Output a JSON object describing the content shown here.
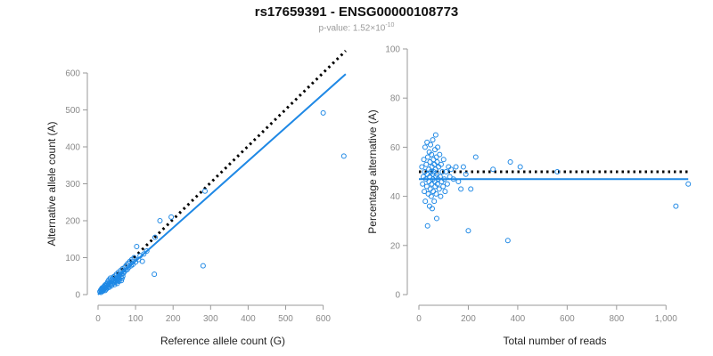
{
  "title": "rs17659391 - ENSG00000108773",
  "subtitle": {
    "prefix": "p-value: 1.52×10",
    "exponent": "-10"
  },
  "colors": {
    "series": "#1e88e5",
    "reference_line": "#000000",
    "axis": "#9a9a9a",
    "tick_text": "#8a8a8a"
  },
  "chart_data": [
    {
      "type": "scatter",
      "xlabel": "Reference allele count (G)",
      "ylabel": "Alternative allele count (A)",
      "xlim": [
        0,
        665
      ],
      "ylim": [
        0,
        600
      ],
      "x_ticks": [
        0,
        100,
        200,
        300,
        400,
        500,
        600
      ],
      "y_ticks": [
        0,
        100,
        200,
        300,
        400,
        500,
        600
      ],
      "x_tick_labels": [
        "0",
        "100",
        "200",
        "300",
        "400",
        "500",
        "600"
      ],
      "y_tick_labels": [
        "0",
        "100",
        "200",
        "300",
        "400",
        "500",
        "600"
      ],
      "grid": false,
      "reference_line": {
        "style": "dotted",
        "points": [
          [
            40,
            45
          ],
          [
            660,
            660
          ]
        ]
      },
      "fit_line": {
        "style": "solid",
        "points": [
          [
            0,
            0
          ],
          [
            660,
            597
          ]
        ]
      },
      "points": [
        [
          5,
          8
        ],
        [
          7,
          12
        ],
        [
          8,
          6
        ],
        [
          9,
          15
        ],
        [
          10,
          10
        ],
        [
          11,
          18
        ],
        [
          12,
          9
        ],
        [
          13,
          14
        ],
        [
          14,
          20
        ],
        [
          15,
          12
        ],
        [
          16,
          22
        ],
        [
          17,
          16
        ],
        [
          18,
          25
        ],
        [
          19,
          11
        ],
        [
          20,
          19
        ],
        [
          21,
          28
        ],
        [
          22,
          15
        ],
        [
          23,
          24
        ],
        [
          24,
          30
        ],
        [
          25,
          18
        ],
        [
          26,
          35
        ],
        [
          27,
          22
        ],
        [
          28,
          27
        ],
        [
          29,
          40
        ],
        [
          30,
          20
        ],
        [
          31,
          33
        ],
        [
          32,
          26
        ],
        [
          33,
          45
        ],
        [
          34,
          30
        ],
        [
          35,
          38
        ],
        [
          36,
          24
        ],
        [
          37,
          42
        ],
        [
          38,
          29
        ],
        [
          40,
          35
        ],
        [
          41,
          48
        ],
        [
          42,
          32
        ],
        [
          43,
          40
        ],
        [
          44,
          27
        ],
        [
          45,
          50
        ],
        [
          46,
          37
        ],
        [
          47,
          44
        ],
        [
          48,
          34
        ],
        [
          49,
          55
        ],
        [
          50,
          41
        ],
        [
          51,
          30
        ],
        [
          52,
          47
        ],
        [
          53,
          38
        ],
        [
          54,
          60
        ],
        [
          55,
          45
        ],
        [
          56,
          36
        ],
        [
          57,
          52
        ],
        [
          58,
          42
        ],
        [
          60,
          65
        ],
        [
          61,
          48
        ],
        [
          62,
          38
        ],
        [
          63,
          56
        ],
        [
          64,
          44
        ],
        [
          65,
          70
        ],
        [
          66,
          50
        ],
        [
          68,
          58
        ],
        [
          70,
          62
        ],
        [
          72,
          75
        ],
        [
          74,
          66
        ],
        [
          76,
          80
        ],
        [
          78,
          68
        ],
        [
          80,
          85
        ],
        [
          82,
          74
        ],
        [
          85,
          90
        ],
        [
          88,
          78
        ],
        [
          90,
          95
        ],
        [
          93,
          82
        ],
        [
          96,
          100
        ],
        [
          100,
          88
        ],
        [
          103,
          130
        ],
        [
          108,
          95
        ],
        [
          112,
          105
        ],
        [
          118,
          90
        ],
        [
          122,
          110
        ],
        [
          130,
          118
        ],
        [
          150,
          55
        ],
        [
          152,
          155
        ],
        [
          165,
          200
        ],
        [
          195,
          210
        ],
        [
          280,
          78
        ],
        [
          285,
          280
        ],
        [
          600,
          492
        ],
        [
          655,
          375
        ]
      ]
    },
    {
      "type": "scatter",
      "xlabel": "Total number of reads",
      "ylabel": "Percentage alternative (A)",
      "xlim": [
        0,
        1100
      ],
      "ylim": [
        0,
        100
      ],
      "x_ticks": [
        0,
        200,
        400,
        600,
        800,
        1000
      ],
      "y_ticks": [
        0,
        20,
        40,
        60,
        80,
        100
      ],
      "x_tick_labels": [
        "0",
        "200",
        "400",
        "600",
        "800",
        "1,000"
      ],
      "y_tick_labels": [
        "0",
        "20",
        "40",
        "60",
        "80",
        "100"
      ],
      "grid": false,
      "reference_line": {
        "style": "dotted",
        "points": [
          [
            0,
            50
          ],
          [
            1090,
            50
          ]
        ]
      },
      "fit_line": {
        "style": "solid",
        "points": [
          [
            0,
            47
          ],
          [
            1090,
            47
          ]
        ]
      },
      "points": [
        [
          12,
          52
        ],
        [
          15,
          45
        ],
        [
          18,
          48
        ],
        [
          20,
          55
        ],
        [
          22,
          42
        ],
        [
          24,
          50
        ],
        [
          25,
          60
        ],
        [
          26,
          38
        ],
        [
          28,
          47
        ],
        [
          30,
          53
        ],
        [
          32,
          44
        ],
        [
          33,
          62
        ],
        [
          34,
          49
        ],
        [
          35,
          28
        ],
        [
          36,
          56
        ],
        [
          38,
          41
        ],
        [
          40,
          51
        ],
        [
          41,
          46
        ],
        [
          42,
          58
        ],
        [
          43,
          36
        ],
        [
          44,
          48
        ],
        [
          45,
          54
        ],
        [
          46,
          43
        ],
        [
          47,
          61
        ],
        [
          48,
          50
        ],
        [
          50,
          40
        ],
        [
          51,
          57
        ],
        [
          52,
          45
        ],
        [
          53,
          52
        ],
        [
          54,
          35
        ],
        [
          55,
          49
        ],
        [
          56,
          63
        ],
        [
          57,
          47
        ],
        [
          58,
          42
        ],
        [
          59,
          55
        ],
        [
          60,
          50
        ],
        [
          62,
          38
        ],
        [
          63,
          53
        ],
        [
          64,
          46
        ],
        [
          65,
          59
        ],
        [
          66,
          44
        ],
        [
          67,
          51
        ],
        [
          68,
          65
        ],
        [
          69,
          48
        ],
        [
          70,
          41
        ],
        [
          71,
          56
        ],
        [
          72,
          31
        ],
        [
          73,
          49
        ],
        [
          74,
          54
        ],
        [
          75,
          45
        ],
        [
          76,
          60
        ],
        [
          78,
          47
        ],
        [
          80,
          52
        ],
        [
          82,
          43
        ],
        [
          84,
          57
        ],
        [
          86,
          48
        ],
        [
          88,
          40
        ],
        [
          90,
          53
        ],
        [
          92,
          46
        ],
        [
          95,
          50
        ],
        [
          98,
          44
        ],
        [
          100,
          55
        ],
        [
          103,
          47
        ],
        [
          106,
          42
        ],
        [
          110,
          50
        ],
        [
          115,
          45
        ],
        [
          120,
          52
        ],
        [
          125,
          48
        ],
        [
          130,
          51
        ],
        [
          140,
          47
        ],
        [
          150,
          52
        ],
        [
          160,
          46
        ],
        [
          170,
          43
        ],
        [
          180,
          52
        ],
        [
          190,
          49
        ],
        [
          200,
          26
        ],
        [
          210,
          43
        ],
        [
          230,
          56
        ],
        [
          300,
          51
        ],
        [
          360,
          22
        ],
        [
          370,
          54
        ],
        [
          410,
          52
        ],
        [
          560,
          50
        ],
        [
          1040,
          36
        ],
        [
          1090,
          45
        ]
      ]
    }
  ]
}
